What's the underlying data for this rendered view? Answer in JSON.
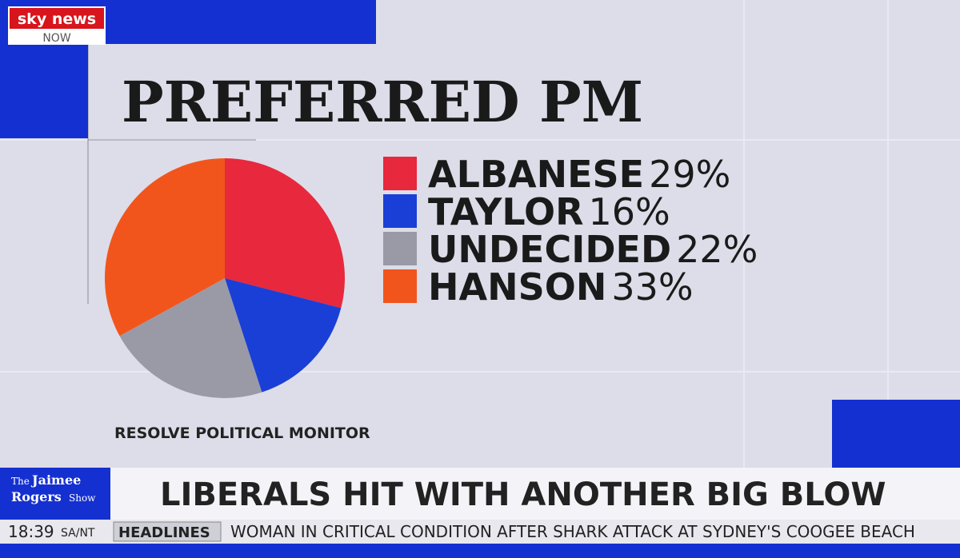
{
  "broadcast": {
    "logo": {
      "brand": "sky news",
      "tag": "NOW"
    },
    "show": {
      "the": "The",
      "name_line1": "Jaimee",
      "name_line2": "Rogers",
      "suffix": "Show"
    },
    "headline": "LIBERALS HIT WITH ANOTHER BIG BLOW",
    "time": "18:39",
    "region": "SA/NT",
    "ticker_label": "HEADLINES",
    "ticker": "WOMAN IN CRITICAL CONDITION AFTER SHARK ATTACK AT SYDNEY'S COOGEE BEACH"
  },
  "chart_data": {
    "type": "pie",
    "title": "PREFERRED PM",
    "source": "RESOLVE POLITICAL MONITOR",
    "categories": [
      "ALBANESE",
      "TAYLOR",
      "UNDECIDED",
      "HANSON"
    ],
    "values": [
      29,
      16,
      22,
      33
    ],
    "value_labels": [
      "29%",
      "16%",
      "22%",
      "33%"
    ],
    "colors": [
      "#e8283c",
      "#1a3fd6",
      "#9a9aa6",
      "#f2551c"
    ]
  }
}
